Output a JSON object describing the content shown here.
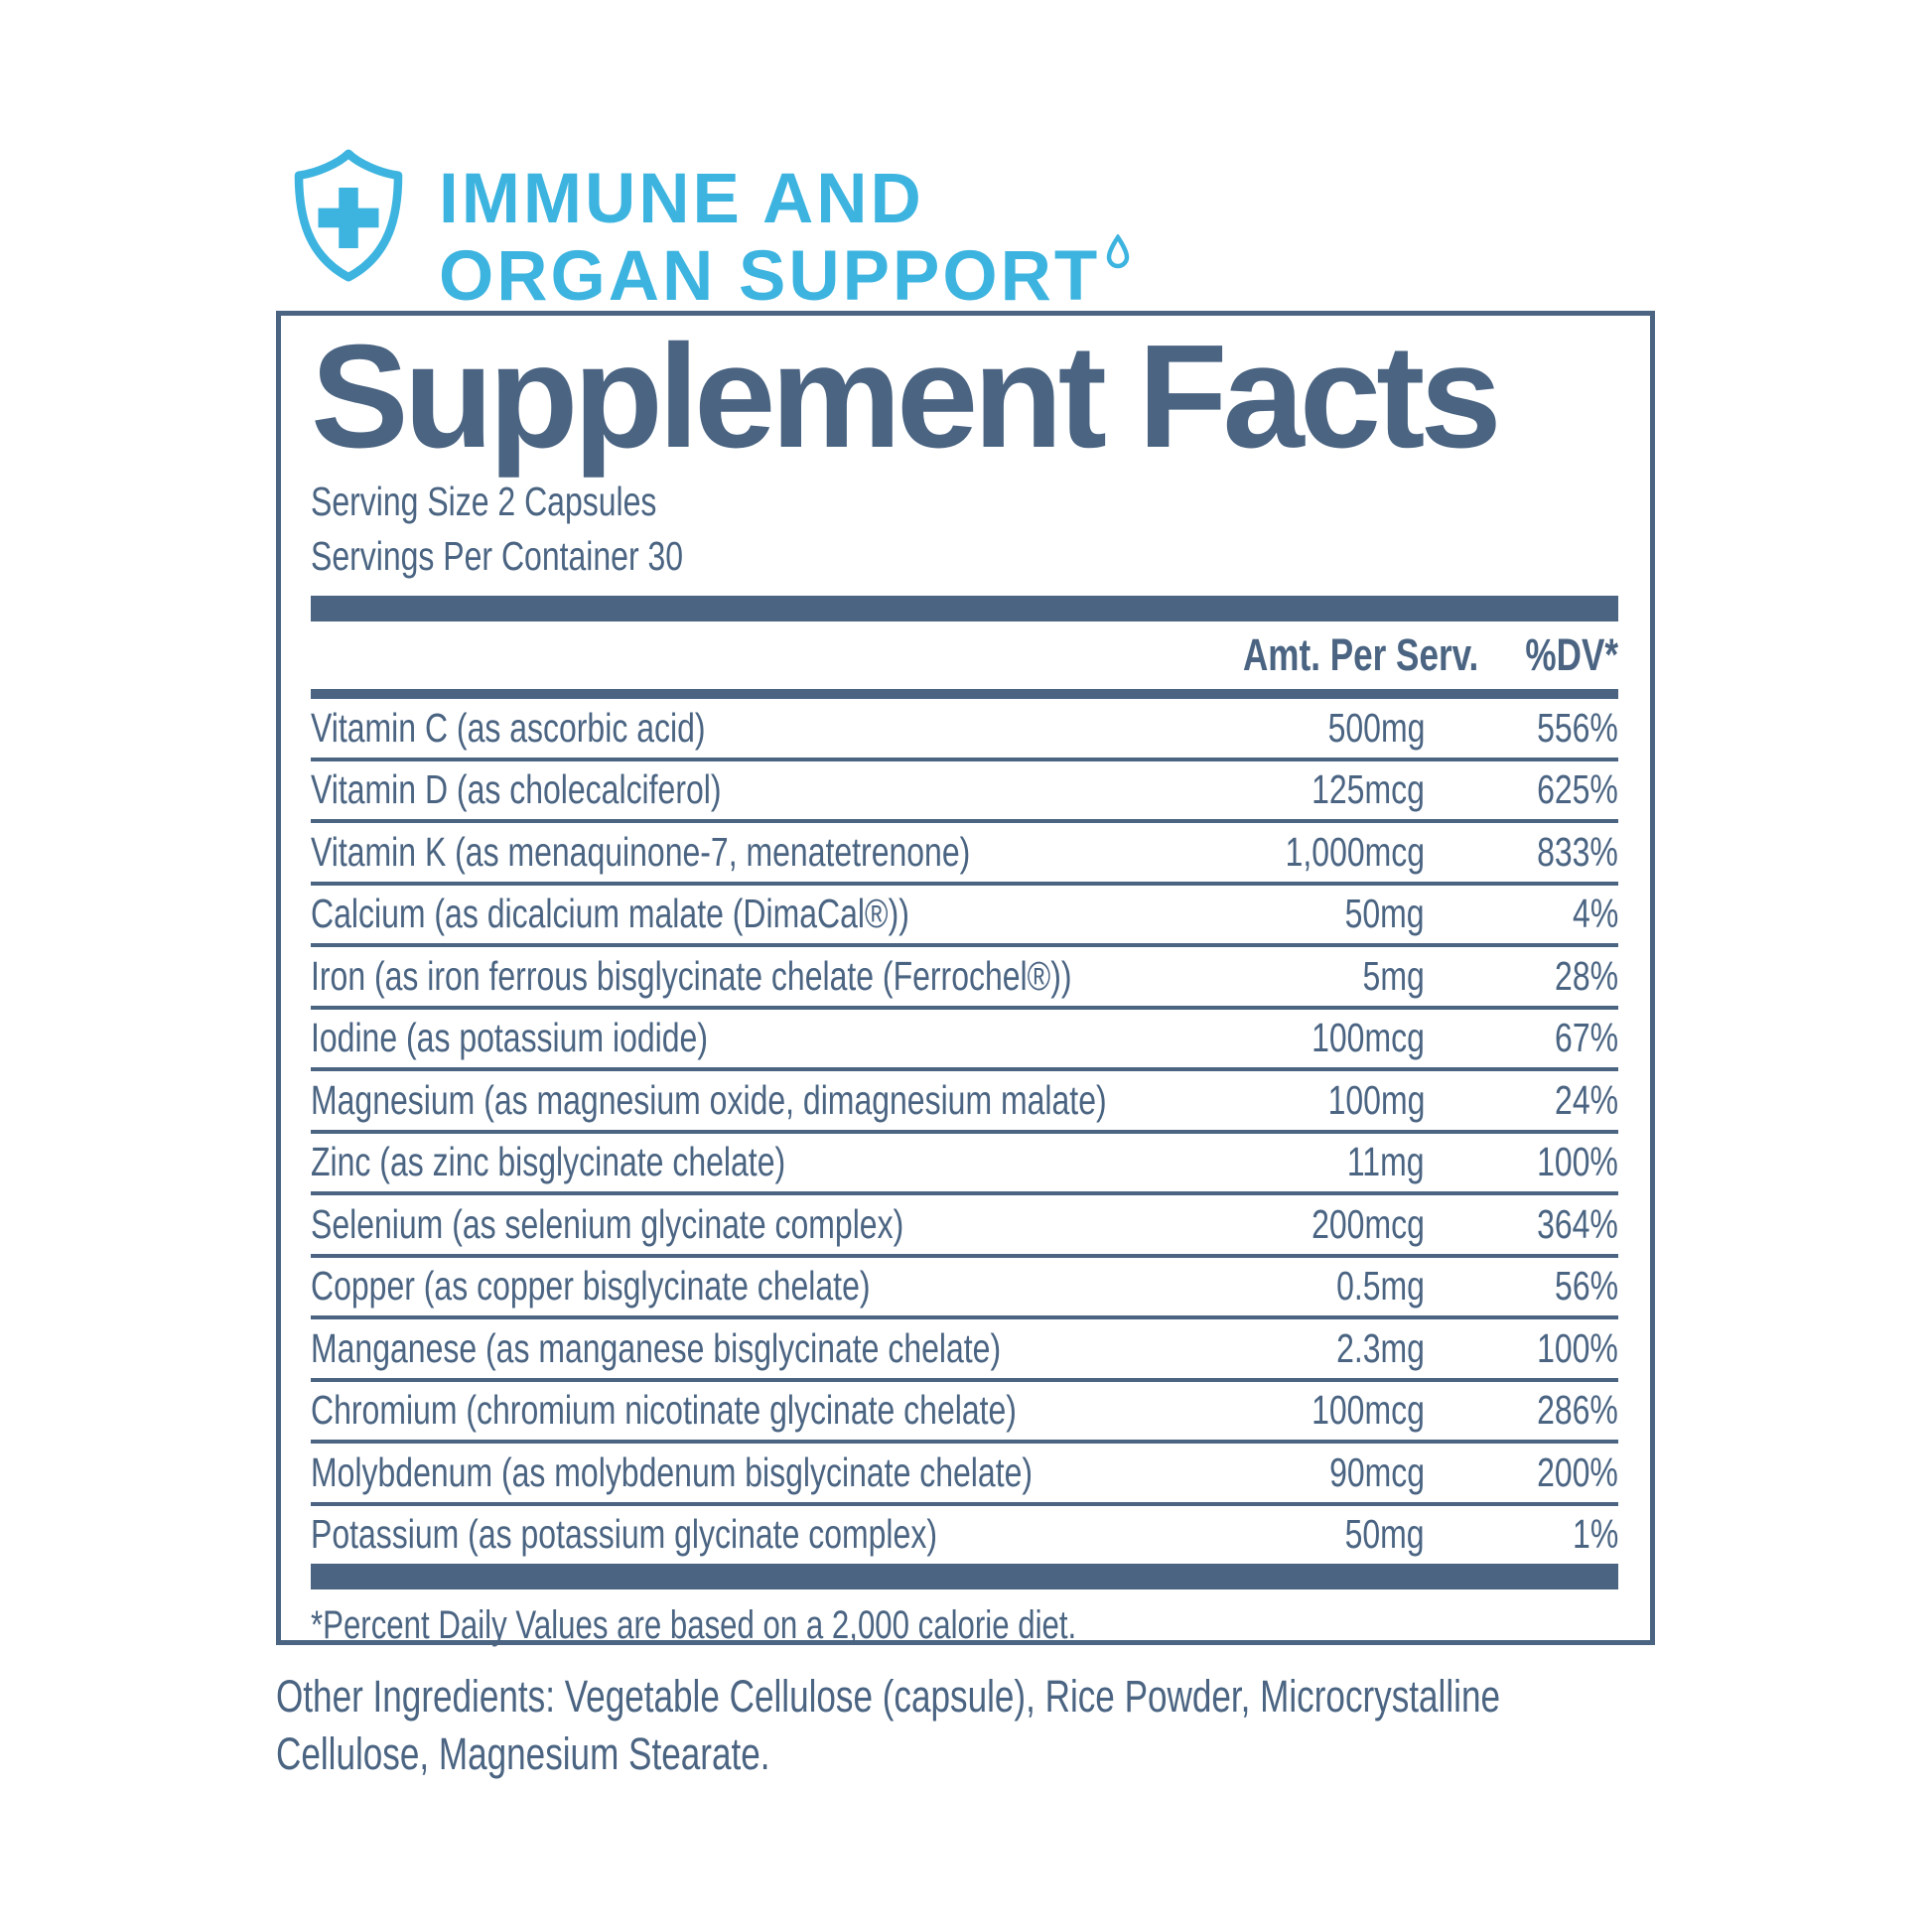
{
  "theme": {
    "accent": "#3DB4DF",
    "slate": "#4A6482"
  },
  "logo": {
    "line1": "IMMUNE AND",
    "line2": "ORGAN SUPPORT",
    "shield_icon": "shield-cross-icon",
    "droplet_icon": "droplet-icon"
  },
  "panel": {
    "title": "Supplement Facts",
    "serving_size": "Serving Size 2 Capsules",
    "servings_per_container": "Servings Per Container 30",
    "columns": {
      "amount": "Amt. Per Serv.",
      "dv": "%DV*"
    },
    "rows": [
      {
        "name": "Vitamin C (as ascorbic acid)",
        "amount": "500mg",
        "dv": "556%"
      },
      {
        "name": "Vitamin D (as cholecalciferol)",
        "amount": "125mcg",
        "dv": "625%"
      },
      {
        "name": "Vitamin K (as menaquinone-7, menatetrenone)",
        "amount": "1,000mcg",
        "dv": "833%"
      },
      {
        "name": "Calcium (as dicalcium malate (DimaCal®))",
        "amount": "50mg",
        "dv": "4%"
      },
      {
        "name": "Iron (as iron ferrous bisglycinate chelate (Ferrochel®))",
        "amount": "5mg",
        "dv": "28%"
      },
      {
        "name": "Iodine (as potassium iodide)",
        "amount": "100mcg",
        "dv": "67%"
      },
      {
        "name": "Magnesium (as magnesium oxide, dimagnesium malate)",
        "amount": "100mg",
        "dv": "24%"
      },
      {
        "name": "Zinc (as zinc bisglycinate chelate)",
        "amount": "11mg",
        "dv": "100%"
      },
      {
        "name": "Selenium (as selenium glycinate complex)",
        "amount": "200mcg",
        "dv": "364%"
      },
      {
        "name": "Copper (as copper bisglycinate chelate)",
        "amount": "0.5mg",
        "dv": "56%"
      },
      {
        "name": "Manganese (as manganese bisglycinate chelate)",
        "amount": "2.3mg",
        "dv": "100%"
      },
      {
        "name": "Chromium (chromium nicotinate glycinate chelate)",
        "amount": "100mcg",
        "dv": "286%"
      },
      {
        "name": "Molybdenum (as molybdenum bisglycinate chelate)",
        "amount": "90mcg",
        "dv": "200%"
      },
      {
        "name": "Potassium (as potassium glycinate complex)",
        "amount": "50mg",
        "dv": "1%"
      }
    ],
    "footnote": "*Percent Daily Values are based on a 2,000 calorie diet."
  },
  "other_ingredients_lines": [
    "Other Ingredients: Vegetable Cellulose (capsule), Rice Powder, Microcrystalline",
    "Cellulose, Magnesium Stearate."
  ]
}
